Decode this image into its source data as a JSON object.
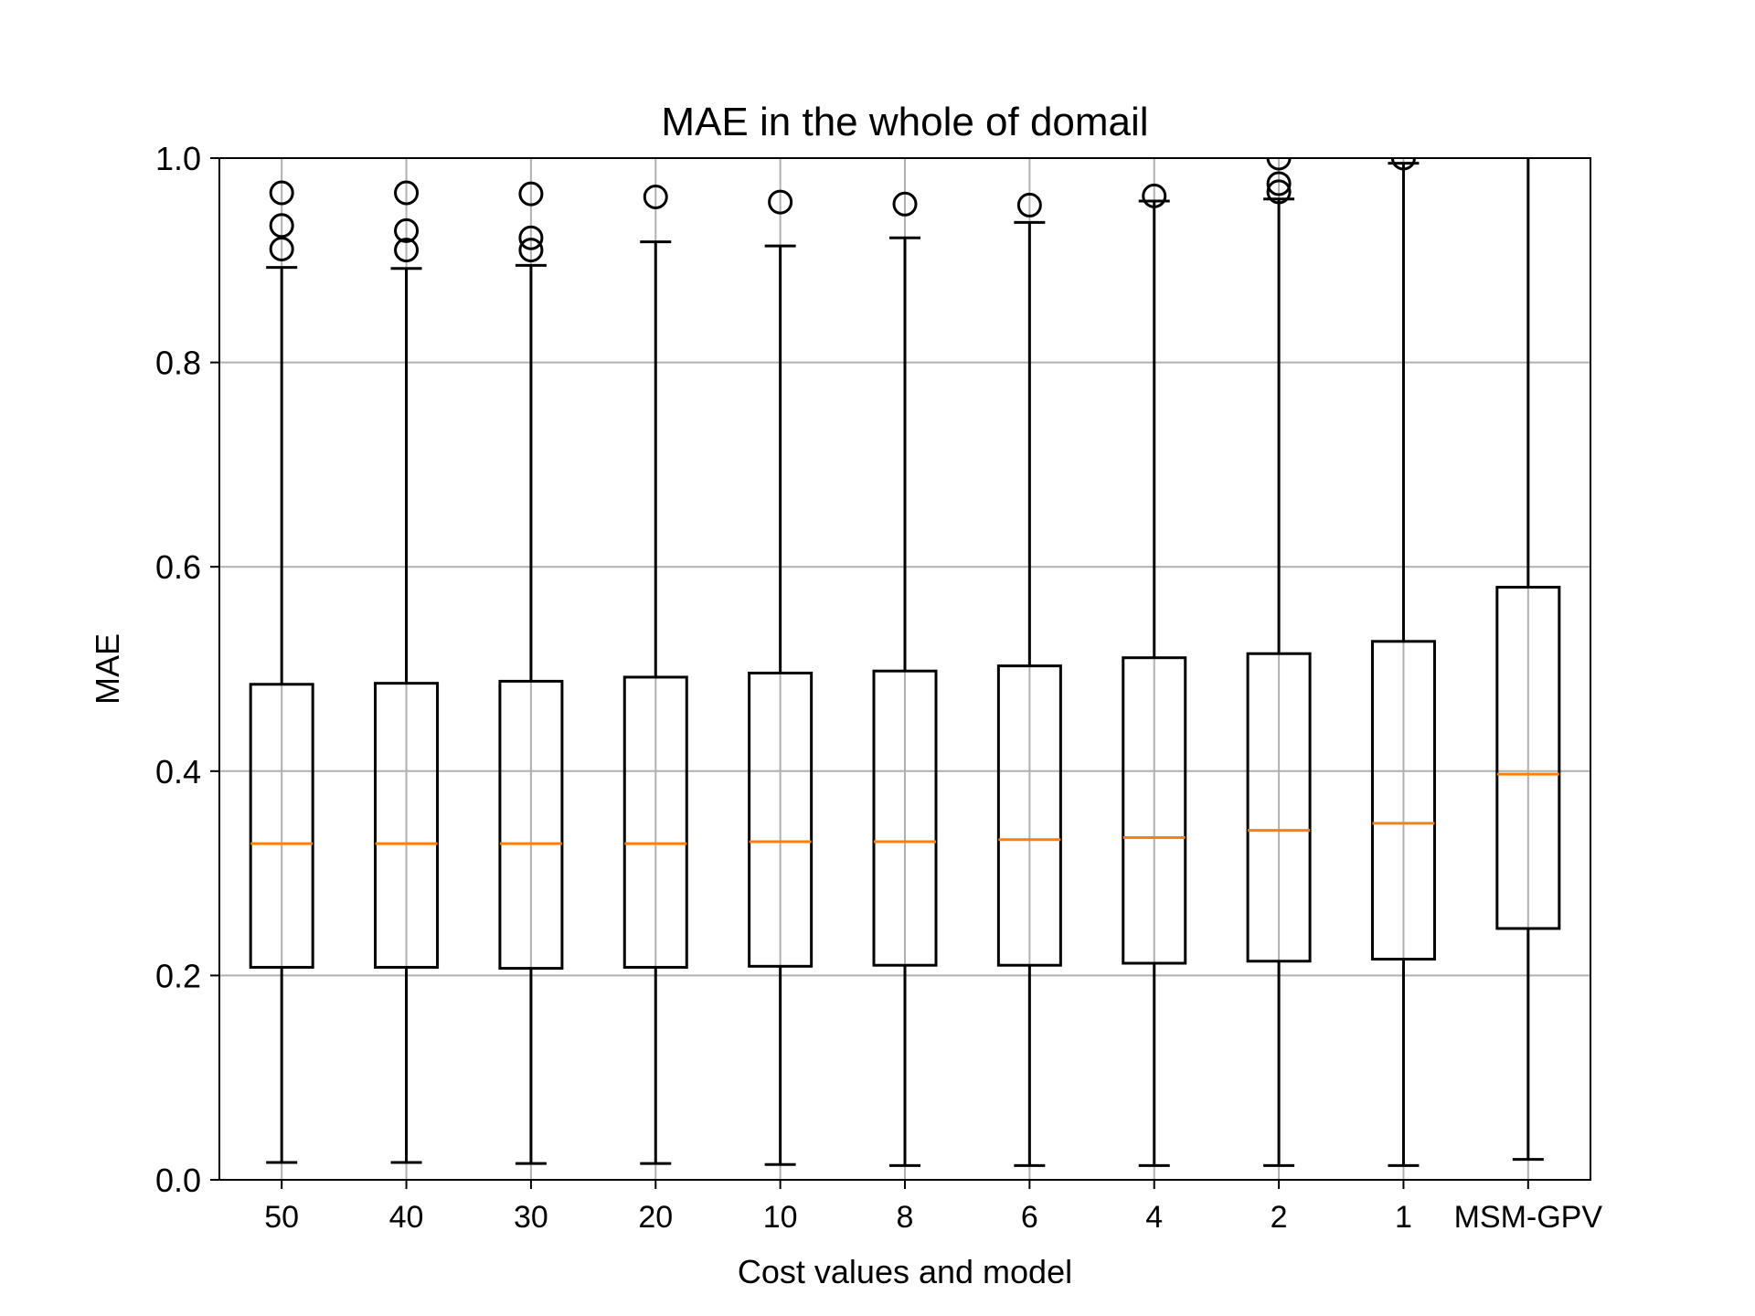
{
  "chart_data": {
    "type": "box",
    "title": "MAE in the whole of domail",
    "xlabel": "Cost values and model",
    "ylabel": "MAE",
    "ylim": [
      0.0,
      1.0
    ],
    "yticks": [
      "0.0",
      "0.2",
      "0.4",
      "0.6",
      "0.8",
      "1.0"
    ],
    "grid": true,
    "categories": [
      "50",
      "40",
      "30",
      "20",
      "10",
      "8",
      "6",
      "4",
      "2",
      "1",
      "MSM-GPV"
    ],
    "boxes": [
      {
        "whisker_low": 0.017,
        "q1": 0.208,
        "median": 0.329,
        "q3": 0.485,
        "whisker_high": 0.893,
        "outliers": [
          0.911,
          0.934,
          0.966
        ]
      },
      {
        "whisker_low": 0.017,
        "q1": 0.208,
        "median": 0.329,
        "q3": 0.486,
        "whisker_high": 0.892,
        "outliers": [
          0.91,
          0.929,
          0.966
        ]
      },
      {
        "whisker_low": 0.016,
        "q1": 0.207,
        "median": 0.329,
        "q3": 0.488,
        "whisker_high": 0.895,
        "outliers": [
          0.91,
          0.922,
          0.965
        ]
      },
      {
        "whisker_low": 0.016,
        "q1": 0.208,
        "median": 0.329,
        "q3": 0.492,
        "whisker_high": 0.918,
        "outliers": [
          0.962
        ]
      },
      {
        "whisker_low": 0.015,
        "q1": 0.209,
        "median": 0.331,
        "q3": 0.496,
        "whisker_high": 0.914,
        "outliers": [
          0.957
        ]
      },
      {
        "whisker_low": 0.014,
        "q1": 0.21,
        "median": 0.331,
        "q3": 0.498,
        "whisker_high": 0.922,
        "outliers": [
          0.955
        ]
      },
      {
        "whisker_low": 0.014,
        "q1": 0.21,
        "median": 0.333,
        "q3": 0.503,
        "whisker_high": 0.937,
        "outliers": [
          0.954
        ]
      },
      {
        "whisker_low": 0.014,
        "q1": 0.212,
        "median": 0.335,
        "q3": 0.511,
        "whisker_high": 0.958,
        "outliers": [
          0.963
        ]
      },
      {
        "whisker_low": 0.014,
        "q1": 0.214,
        "median": 0.342,
        "q3": 0.515,
        "whisker_high": 0.96,
        "outliers": [
          0.967,
          0.975,
          1.0
        ]
      },
      {
        "whisker_low": 0.014,
        "q1": 0.216,
        "median": 0.349,
        "q3": 0.527,
        "whisker_high": 0.995,
        "outliers": [
          1.0
        ]
      },
      {
        "whisker_low": 0.02,
        "q1": 0.246,
        "median": 0.397,
        "q3": 0.58,
        "whisker_high": 1.0,
        "outliers": []
      }
    ],
    "colors": {
      "box": "#000000",
      "median": "#ff7f0e",
      "grid": "#b0b0b0",
      "outlier": "#000000"
    }
  }
}
